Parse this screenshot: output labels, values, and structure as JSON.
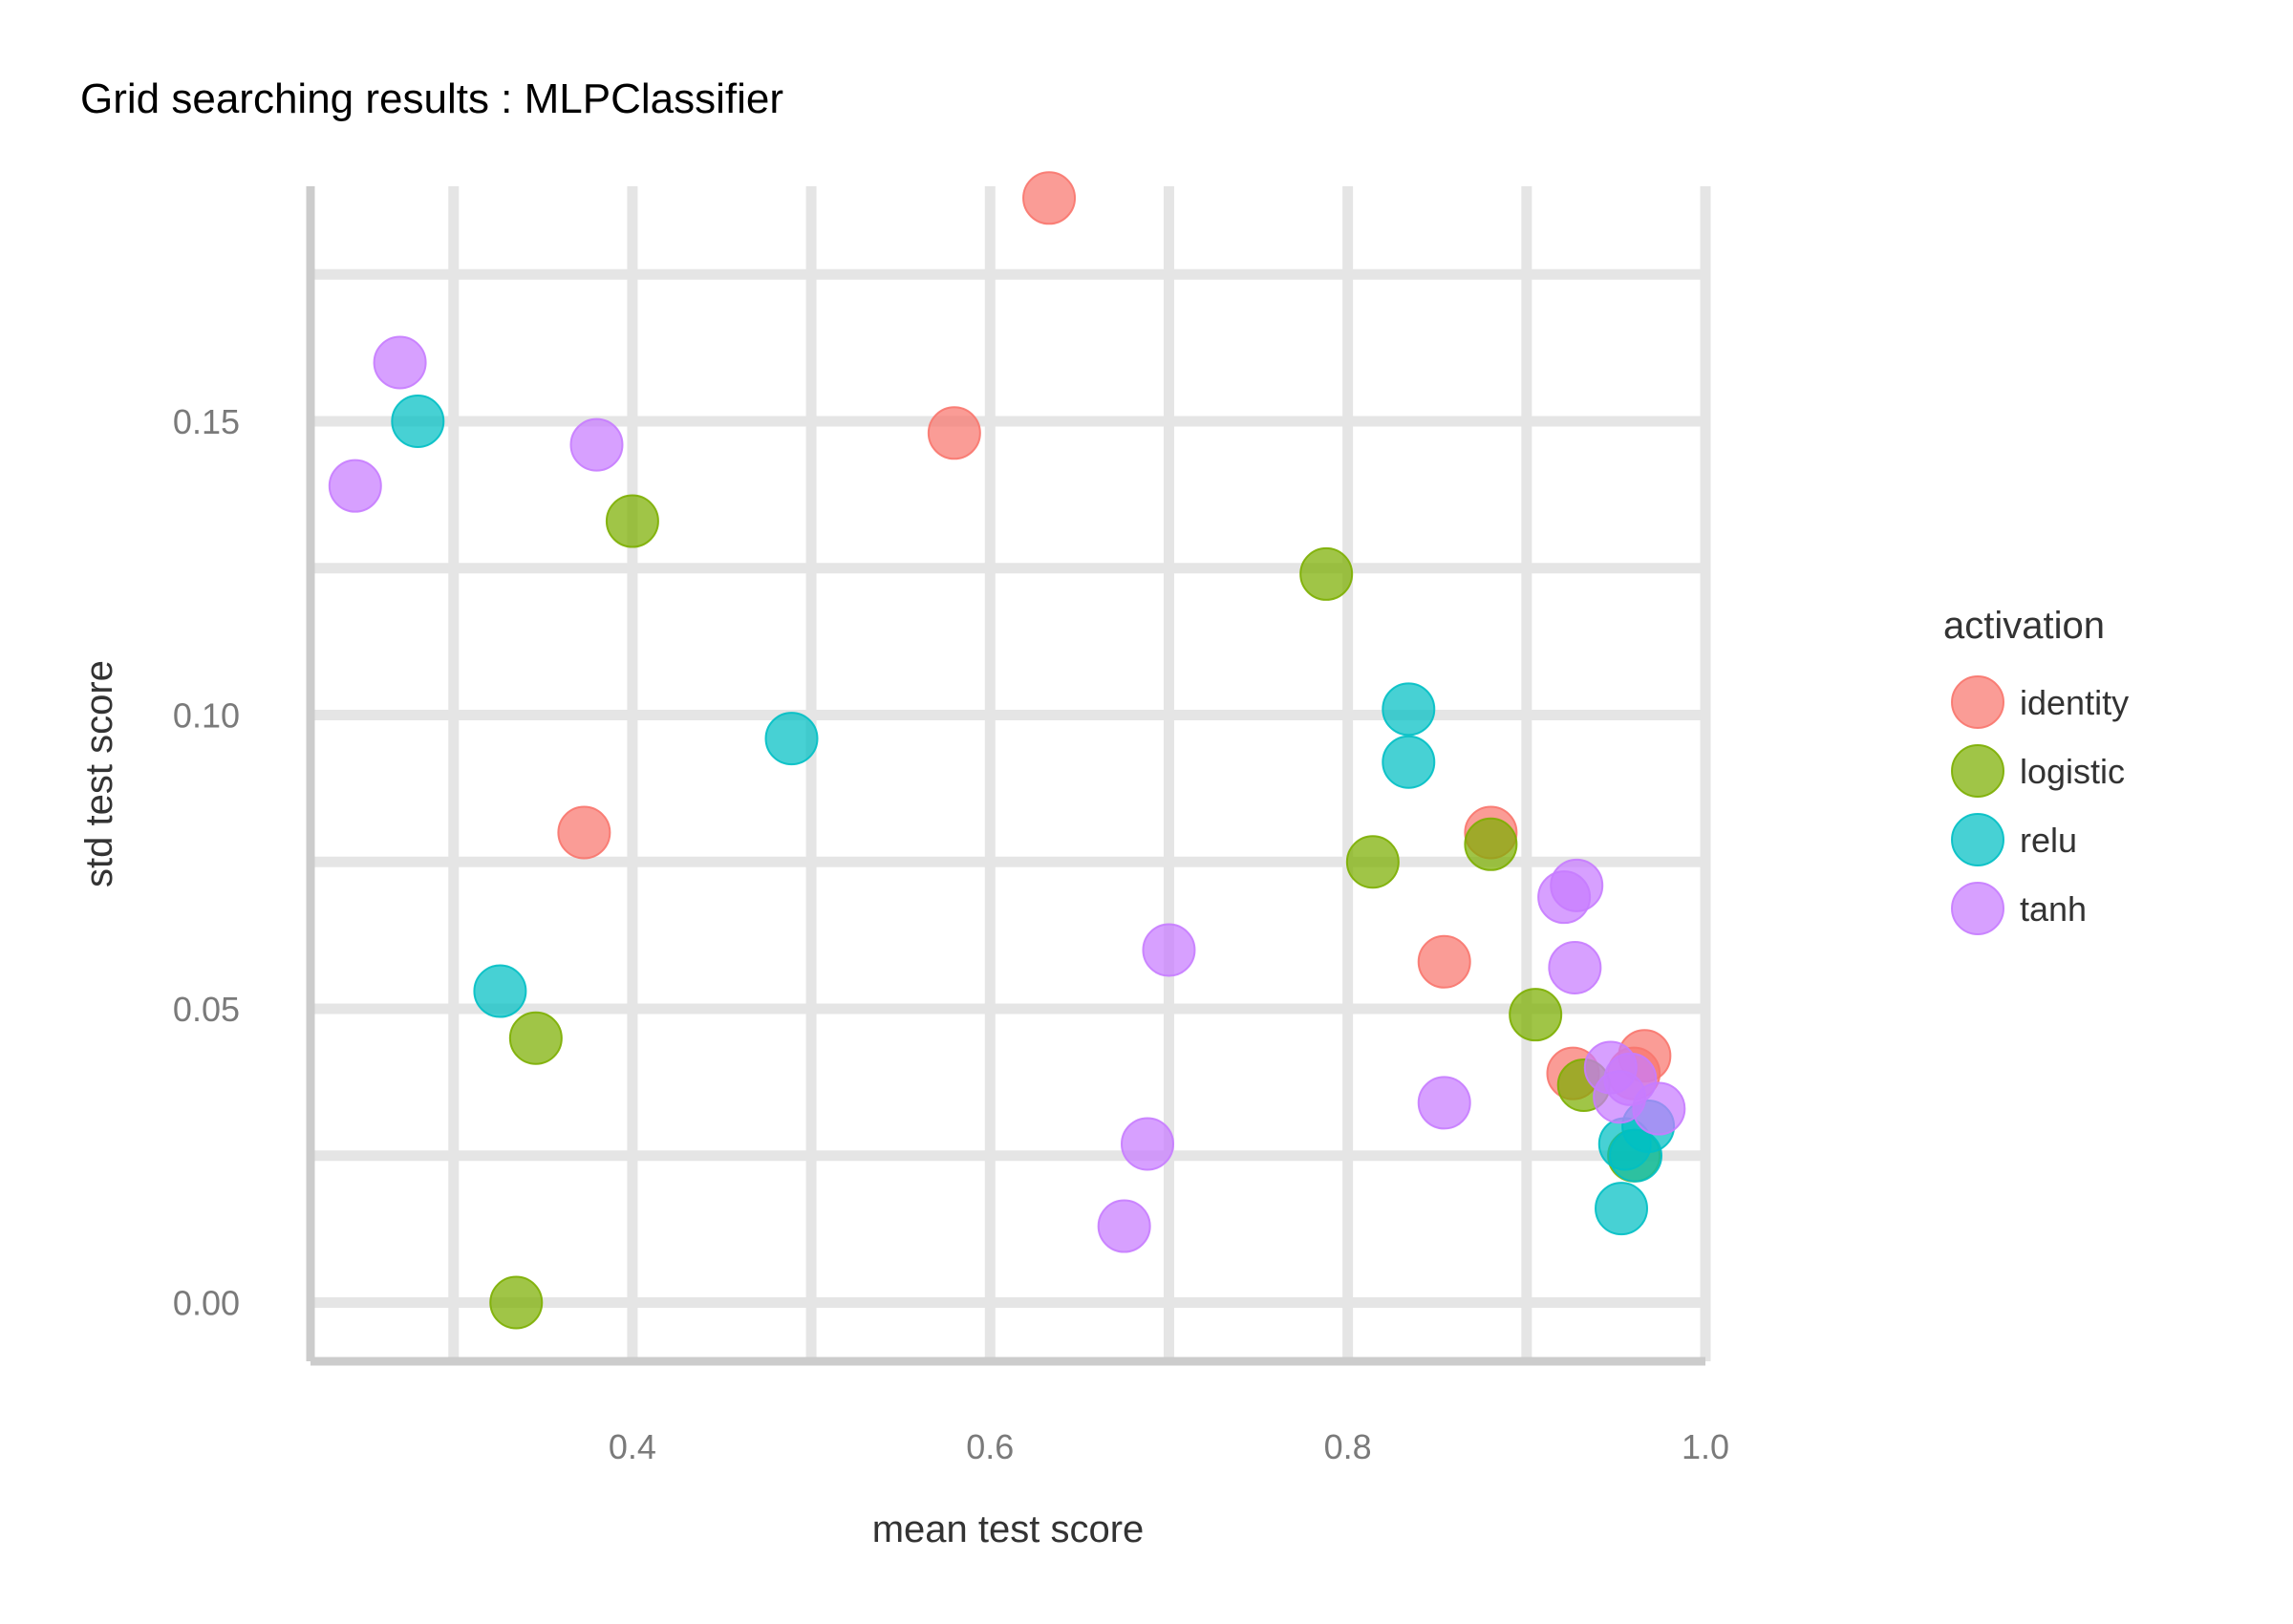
{
  "chart_data": {
    "type": "scatter",
    "title": "Grid searching results :  MLPClassifier",
    "xlabel": "mean test score",
    "ylabel": "std test score",
    "xlim": [
      0.22,
      1.0
    ],
    "ylim": [
      -0.01,
      0.19
    ],
    "x_ticks": [
      0.4,
      0.6,
      0.8,
      1.0
    ],
    "x_tick_labels": [
      "0.4",
      "0.6",
      "0.8",
      "1.0"
    ],
    "y_ticks": [
      0.0,
      0.05,
      0.1,
      0.15
    ],
    "y_tick_labels": [
      "0.00",
      "0.05",
      "0.10",
      "0.15"
    ],
    "grid": true,
    "legend": {
      "title": "activation",
      "position": "right"
    },
    "series": [
      {
        "name": "identity",
        "color": "#F8766D",
        "points": [
          {
            "x": 0.633,
            "y": 0.188
          },
          {
            "x": 0.58,
            "y": 0.148
          },
          {
            "x": 0.373,
            "y": 0.08
          },
          {
            "x": 0.88,
            "y": 0.08
          },
          {
            "x": 0.854,
            "y": 0.058
          },
          {
            "x": 0.966,
            "y": 0.042
          },
          {
            "x": 0.926,
            "y": 0.039
          },
          {
            "x": 0.96,
            "y": 0.039
          }
        ]
      },
      {
        "name": "logistic",
        "color": "#7CAE00",
        "points": [
          {
            "x": 0.4,
            "y": 0.133
          },
          {
            "x": 0.788,
            "y": 0.124
          },
          {
            "x": 0.814,
            "y": 0.075
          },
          {
            "x": 0.88,
            "y": 0.078
          },
          {
            "x": 0.905,
            "y": 0.049
          },
          {
            "x": 0.346,
            "y": 0.045
          },
          {
            "x": 0.932,
            "y": 0.037
          },
          {
            "x": 0.96,
            "y": 0.025
          },
          {
            "x": 0.335,
            "y": 0.0
          }
        ]
      },
      {
        "name": "relu",
        "color": "#00BFC4",
        "points": [
          {
            "x": 0.28,
            "y": 0.15
          },
          {
            "x": 0.834,
            "y": 0.101
          },
          {
            "x": 0.834,
            "y": 0.092
          },
          {
            "x": 0.489,
            "y": 0.096
          },
          {
            "x": 0.326,
            "y": 0.053
          },
          {
            "x": 0.955,
            "y": 0.027
          },
          {
            "x": 0.961,
            "y": 0.025
          },
          {
            "x": 0.968,
            "y": 0.03
          },
          {
            "x": 0.953,
            "y": 0.016
          }
        ]
      },
      {
        "name": "tanh",
        "color": "#C77CFF",
        "points": [
          {
            "x": 0.27,
            "y": 0.16
          },
          {
            "x": 0.38,
            "y": 0.146
          },
          {
            "x": 0.245,
            "y": 0.139
          },
          {
            "x": 0.7,
            "y": 0.06
          },
          {
            "x": 0.928,
            "y": 0.071
          },
          {
            "x": 0.921,
            "y": 0.069
          },
          {
            "x": 0.927,
            "y": 0.057
          },
          {
            "x": 0.854,
            "y": 0.034
          },
          {
            "x": 0.688,
            "y": 0.027
          },
          {
            "x": 0.675,
            "y": 0.013
          },
          {
            "x": 0.947,
            "y": 0.04
          },
          {
            "x": 0.958,
            "y": 0.038
          },
          {
            "x": 0.952,
            "y": 0.035
          },
          {
            "x": 0.974,
            "y": 0.033
          }
        ]
      }
    ]
  }
}
